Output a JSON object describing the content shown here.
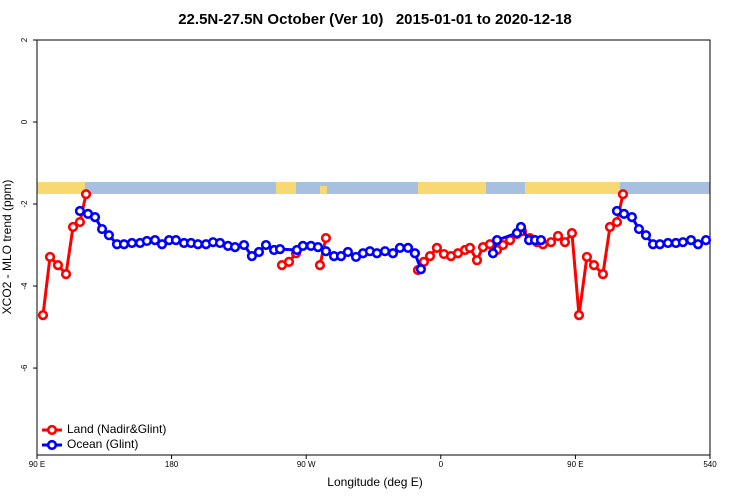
{
  "chart_data": {
    "type": "line",
    "title": "22.5N-27.5N October (Ver 10)   2015-01-01 to 2020-12-18",
    "xlabel": "Longitude (deg E)",
    "ylabel": "XCO2 - MLO trend (ppm)",
    "xlim": [
      90,
      540
    ],
    "ylim": [
      -8.12,
      2
    ],
    "xticks": [
      {
        "value": 90,
        "label": "90 E"
      },
      180,
      {
        "value": 270,
        "label": "90 W"
      },
      {
        "value": 360,
        "label": "0"
      },
      {
        "value": 450,
        "label": "90 E"
      },
      540
    ],
    "yticks": [
      -6,
      -4,
      -2,
      0,
      2
    ],
    "legend": "bottom-left",
    "series": [
      {
        "name": "Land (Nadir&Glint)",
        "color": "#ff0000",
        "x": [
          94.0,
          98.7,
          104.0,
          109.4,
          114.1,
          118.7,
          122.8,
          null,
          253.8,
          258.5,
          263.2,
          null,
          279.2,
          283.2,
          null,
          344.7,
          348.7,
          352.8,
          357.4,
          362.1,
          366.8,
          371.5,
          376.2,
          379.5,
          384.2,
          388.2,
          392.9,
          397.6,
          401.6,
          406.3,
          410.9,
          414.3,
          419.6,
          424.3,
          428.3,
          433.7,
          438.4,
          443.0,
          447.7,
          452.4,
          457.7,
          462.4,
          468.4,
          473.1,
          477.8,
          481.8
        ],
        "values": [
          -4.71,
          -3.29,
          -3.49,
          -3.71,
          -2.56,
          -2.44,
          -1.76,
          null,
          -3.49,
          -3.41,
          -3.2,
          null,
          -3.49,
          -2.83,
          null,
          -3.61,
          -3.41,
          -3.27,
          -3.07,
          -3.22,
          -3.27,
          -3.2,
          -3.12,
          -3.07,
          -3.37,
          -3.05,
          -2.98,
          -3.12,
          -3.0,
          -2.88,
          -2.73,
          -2.66,
          -2.83,
          -2.93,
          -2.98,
          -2.93,
          -2.78,
          -2.93,
          -2.71,
          -4.71,
          -3.29,
          -3.49,
          -3.71,
          -2.56,
          -2.44,
          -1.76
        ]
      },
      {
        "name": "Ocean (Glint)",
        "color": "#0000ff",
        "x": [
          118.7,
          124.1,
          128.8,
          133.5,
          138.1,
          143.5,
          148.2,
          153.5,
          158.9,
          163.5,
          168.9,
          173.6,
          178.3,
          182.9,
          188.3,
          193.0,
          197.6,
          203.0,
          207.7,
          212.4,
          217.7,
          222.4,
          228.4,
          233.7,
          238.4,
          243.1,
          248.5,
          252.5,
          263.8,
          267.8,
          273.2,
          277.9,
          283.2,
          288.6,
          293.3,
          297.9,
          303.3,
          308.0,
          312.6,
          317.3,
          322.7,
          328.0,
          332.7,
          338.1,
          342.7,
          346.7,
          null,
          394.9,
          397.6,
          410.9,
          413.6,
          419.0,
          423.0,
          427.0,
          null,
          477.8,
          482.5,
          487.8,
          492.5,
          497.2,
          501.9,
          506.5,
          511.9,
          517.2,
          521.9,
          527.3,
          532.0,
          537.3
        ],
        "values": [
          -2.17,
          -2.24,
          -2.32,
          -2.61,
          -2.76,
          -2.98,
          -2.98,
          -2.95,
          -2.95,
          -2.9,
          -2.88,
          -2.98,
          -2.88,
          -2.88,
          -2.95,
          -2.95,
          -2.98,
          -2.98,
          -2.93,
          -2.95,
          -3.02,
          -3.05,
          -3.0,
          -3.27,
          -3.17,
          -3.0,
          -3.12,
          -3.1,
          -3.12,
          -3.02,
          -3.02,
          -3.05,
          -3.15,
          -3.27,
          -3.27,
          -3.17,
          -3.29,
          -3.2,
          -3.15,
          -3.2,
          -3.15,
          -3.2,
          -3.07,
          -3.07,
          -3.2,
          -3.59,
          null,
          -3.2,
          -2.88,
          -2.71,
          -2.56,
          -2.88,
          -2.88,
          -2.88,
          null,
          -2.17,
          -2.24,
          -2.32,
          -2.61,
          -2.76,
          -2.98,
          -2.98,
          -2.95,
          -2.95,
          -2.93,
          -2.88,
          -2.98,
          -2.88
        ]
      }
    ]
  }
}
